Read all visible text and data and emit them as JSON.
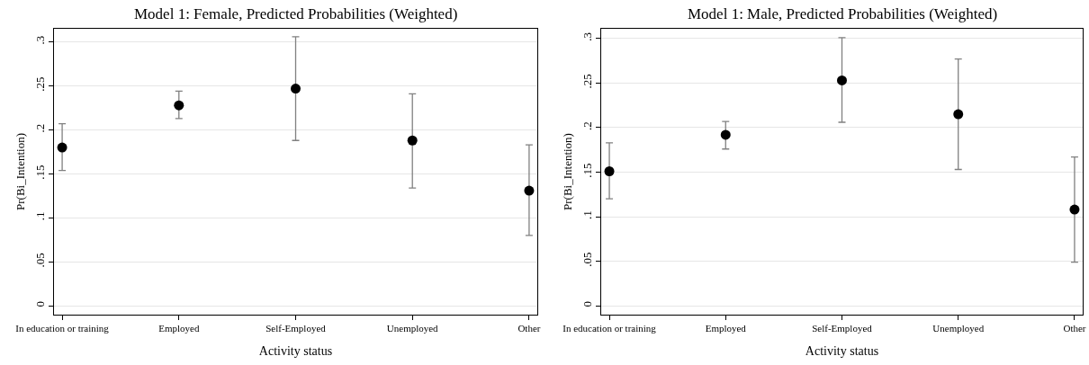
{
  "chart_data": [
    {
      "type": "scatter",
      "title": "Model 1: Female, Predicted Probabilities (Weighted)",
      "xlabel": "Activity status",
      "ylabel": "Pr(Bi_Intention)",
      "categories": [
        "In education or training",
        "Employed",
        "Self-Employed",
        "Unemployed",
        "Other"
      ],
      "series": [
        {
          "color": "#000000",
          "values": [
            0.18,
            0.228,
            0.247,
            0.188,
            0.131
          ],
          "errors": [
            [
              0.154,
              0.207
            ],
            [
              0.213,
              0.244
            ],
            [
              0.188,
              0.306
            ],
            [
              0.134,
              0.241
            ],
            [
              0.08,
              0.183
            ]
          ]
        }
      ],
      "ylim": [
        -0.01,
        0.315
      ],
      "yticks": [
        0,
        {
          "value": 0.05,
          "label": ".05"
        },
        {
          "value": 0.1,
          "label": ".1"
        },
        {
          "value": 0.15,
          "label": ".15"
        },
        {
          "value": 0.2,
          "label": ".2"
        },
        {
          "value": 0.25,
          "label": ".25"
        },
        {
          "value": 0.3,
          "label": ".3"
        }
      ],
      "grid": "y",
      "marker": "circle"
    },
    {
      "type": "scatter",
      "title": "Model 1: Male, Predicted Probabilities (Weighted)",
      "xlabel": "Activity status",
      "ylabel": "Pr(Bi_Intention)",
      "categories": [
        "In education or training",
        "Employed",
        "Self-Employed",
        "Unemployed",
        "Other"
      ],
      "series": [
        {
          "color": "#000000",
          "values": [
            0.151,
            0.192,
            0.253,
            0.215,
            0.108
          ],
          "errors": [
            [
              0.12,
              0.183
            ],
            [
              0.176,
              0.207
            ],
            [
              0.206,
              0.301
            ],
            [
              0.153,
              0.277
            ],
            [
              0.049,
              0.167
            ]
          ]
        }
      ],
      "ylim": [
        -0.01,
        0.311
      ],
      "yticks": [
        0,
        {
          "value": 0.05,
          "label": ".05"
        },
        {
          "value": 0.1,
          "label": ".1"
        },
        {
          "value": 0.15,
          "label": ".15"
        },
        {
          "value": 0.2,
          "label": ".2"
        },
        {
          "value": 0.25,
          "label": ".25"
        },
        {
          "value": 0.3,
          "label": ".3"
        }
      ],
      "grid": "y",
      "marker": "circle"
    }
  ]
}
